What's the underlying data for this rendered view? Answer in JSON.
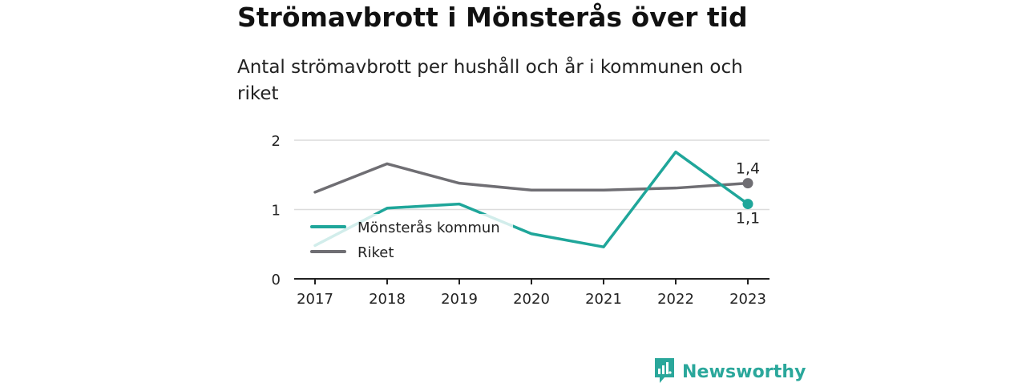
{
  "header": {
    "title": "Strömavbrott i Mönsterås över tid",
    "subtitle": "Antal strömavbrott per hushåll och år i kommunen och riket"
  },
  "chart_data": {
    "type": "line",
    "x": [
      "2017",
      "2018",
      "2019",
      "2020",
      "2021",
      "2022",
      "2023"
    ],
    "ylim": [
      0,
      2
    ],
    "yticks": [
      "0",
      "1",
      "2"
    ],
    "grid": true,
    "legend_position": "bottom-left",
    "series": [
      {
        "name": "Mönsterås kommun",
        "color": "#1fa69a",
        "values": [
          0.48,
          1.02,
          1.08,
          0.65,
          0.46,
          1.83,
          1.08
        ],
        "end_label": "1,1"
      },
      {
        "name": "Riket",
        "color": "#6f6e73",
        "values": [
          1.25,
          1.66,
          1.38,
          1.28,
          1.28,
          1.31,
          1.38
        ],
        "end_label": "1,4"
      }
    ]
  },
  "branding": {
    "name": "Newsworthy",
    "color": "#2aa79b",
    "icon": "bar-chart-badge-icon"
  }
}
